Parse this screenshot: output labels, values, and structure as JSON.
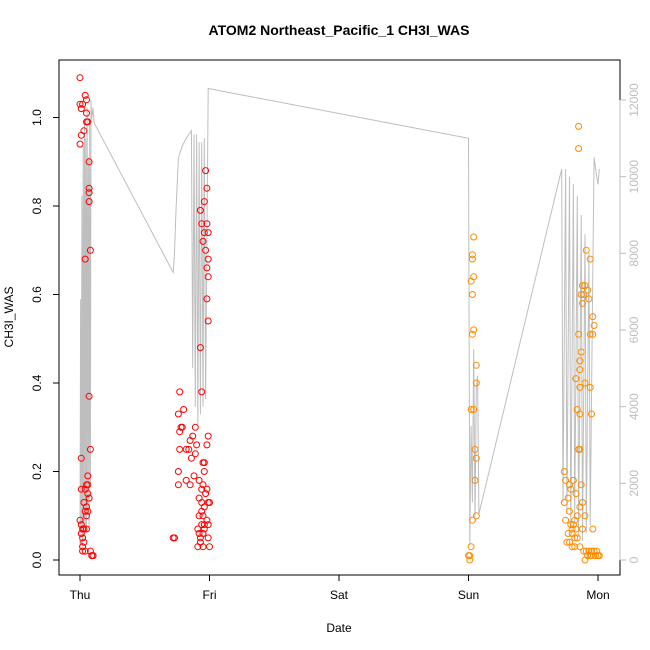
{
  "chart_data": {
    "type": "scatter",
    "title": "ATOM2 Northeast_Pacific_1 CH3I_WAS",
    "xlabel": "Date",
    "ylabel": "CH3I_WAS",
    "x_ticks": [
      "Thu",
      "Fri",
      "Sat",
      "Sun",
      "Mon"
    ],
    "xlim": [
      -0.2,
      4.1
    ],
    "ylim": [
      0,
      1.1
    ],
    "y_ticks": [
      "0.0",
      "0.2",
      "0.4",
      "0.6",
      "0.8",
      "1.0"
    ],
    "y2lim": [
      0,
      12000
    ],
    "y2_ticks": [
      "0",
      "2000",
      "4000",
      "6000",
      "8000",
      "10000",
      "12000"
    ],
    "colors": {
      "series1": "#ff0000",
      "series2": "#ff8c00",
      "altitude": "#bebebe"
    },
    "series": [
      {
        "color": "#ff0000",
        "points": [
          [
            0.0,
            1.09
          ],
          [
            0.0,
            1.03
          ],
          [
            0.01,
            1.02
          ],
          [
            0.02,
            1.03
          ],
          [
            0.01,
            0.96
          ],
          [
            0.0,
            0.94
          ],
          [
            0.03,
            0.97
          ],
          [
            0.04,
            1.05
          ],
          [
            0.05,
            1.04
          ],
          [
            0.05,
            1.01
          ],
          [
            0.05,
            0.99
          ],
          [
            0.06,
            0.99
          ],
          [
            0.07,
            0.9
          ],
          [
            0.07,
            0.84
          ],
          [
            0.07,
            0.83
          ],
          [
            0.07,
            0.81
          ],
          [
            0.08,
            0.7
          ],
          [
            0.04,
            0.68
          ],
          [
            0.07,
            0.37
          ],
          [
            0.08,
            0.25
          ],
          [
            0.01,
            0.23
          ],
          [
            0.06,
            0.19
          ],
          [
            0.05,
            0.17
          ],
          [
            0.06,
            0.17
          ],
          [
            0.01,
            0.16
          ],
          [
            0.04,
            0.16
          ],
          [
            0.06,
            0.15
          ],
          [
            0.07,
            0.14
          ],
          [
            0.03,
            0.13
          ],
          [
            0.05,
            0.12
          ],
          [
            0.06,
            0.11
          ],
          [
            0.04,
            0.11
          ],
          [
            0.05,
            0.1
          ],
          [
            0.0,
            0.09
          ],
          [
            0.01,
            0.08
          ],
          [
            0.02,
            0.07
          ],
          [
            0.03,
            0.07
          ],
          [
            0.05,
            0.07
          ],
          [
            0.01,
            0.06
          ],
          [
            0.02,
            0.05
          ],
          [
            0.03,
            0.04
          ],
          [
            0.02,
            0.03
          ],
          [
            0.04,
            0.02
          ],
          [
            0.02,
            0.02
          ],
          [
            0.08,
            0.02
          ],
          [
            0.09,
            0.01
          ],
          [
            0.1,
            0.01
          ],
          [
            0.1,
            0.01
          ],
          [
            0.97,
            0.88
          ],
          [
            0.98,
            0.84
          ],
          [
            0.96,
            0.81
          ],
          [
            0.93,
            0.79
          ],
          [
            0.94,
            0.76
          ],
          [
            0.98,
            0.76
          ],
          [
            0.96,
            0.74
          ],
          [
            0.99,
            0.74
          ],
          [
            0.95,
            0.72
          ],
          [
            0.97,
            0.7
          ],
          [
            0.99,
            0.68
          ],
          [
            0.98,
            0.66
          ],
          [
            0.99,
            0.64
          ],
          [
            0.98,
            0.59
          ],
          [
            0.99,
            0.54
          ],
          [
            0.93,
            0.48
          ],
          [
            0.94,
            0.38
          ],
          [
            0.77,
            0.38
          ],
          [
            0.76,
            0.33
          ],
          [
            0.8,
            0.34
          ],
          [
            0.78,
            0.3
          ],
          [
            0.77,
            0.29
          ],
          [
            0.79,
            0.3
          ],
          [
            0.89,
            0.3
          ],
          [
            0.99,
            0.28
          ],
          [
            0.85,
            0.27
          ],
          [
            0.87,
            0.28
          ],
          [
            0.98,
            0.26
          ],
          [
            0.77,
            0.25
          ],
          [
            0.84,
            0.25
          ],
          [
            0.82,
            0.25
          ],
          [
            0.9,
            0.26
          ],
          [
            0.89,
            0.24
          ],
          [
            0.86,
            0.23
          ],
          [
            0.95,
            0.22
          ],
          [
            0.96,
            0.22
          ],
          [
            0.76,
            0.2
          ],
          [
            0.96,
            0.2
          ],
          [
            0.88,
            0.19
          ],
          [
            0.82,
            0.18
          ],
          [
            0.92,
            0.18
          ],
          [
            0.95,
            0.17
          ],
          [
            0.76,
            0.17
          ],
          [
            0.85,
            0.17
          ],
          [
            0.98,
            0.16
          ],
          [
            0.94,
            0.16
          ],
          [
            0.97,
            0.15
          ],
          [
            0.92,
            0.14
          ],
          [
            0.94,
            0.13
          ],
          [
            1.0,
            0.13
          ],
          [
            0.99,
            0.13
          ],
          [
            0.96,
            0.12
          ],
          [
            0.94,
            0.11
          ],
          [
            0.95,
            0.1
          ],
          [
            0.92,
            0.1
          ],
          [
            0.98,
            0.09
          ],
          [
            0.96,
            0.08
          ],
          [
            0.94,
            0.08
          ],
          [
            0.99,
            0.08
          ],
          [
            0.91,
            0.07
          ],
          [
            0.96,
            0.07
          ],
          [
            0.92,
            0.06
          ],
          [
            0.95,
            0.06
          ],
          [
            0.99,
            0.05
          ],
          [
            0.93,
            0.05
          ],
          [
            0.72,
            0.05
          ],
          [
            0.73,
            0.05
          ],
          [
            0.93,
            0.04
          ],
          [
            0.91,
            0.03
          ],
          [
            0.95,
            0.03
          ],
          [
            1.0,
            0.03
          ]
        ]
      },
      {
        "color": "#ff8c00",
        "points": [
          [
            3.04,
            0.73
          ],
          [
            3.03,
            0.69
          ],
          [
            3.03,
            0.68
          ],
          [
            3.04,
            0.64
          ],
          [
            3.02,
            0.63
          ],
          [
            3.03,
            0.6
          ],
          [
            3.04,
            0.52
          ],
          [
            3.03,
            0.51
          ],
          [
            3.06,
            0.44
          ],
          [
            3.06,
            0.4
          ],
          [
            3.04,
            0.34
          ],
          [
            3.02,
            0.34
          ],
          [
            3.05,
            0.25
          ],
          [
            3.06,
            0.23
          ],
          [
            3.05,
            0.18
          ],
          [
            3.06,
            0.1
          ],
          [
            3.03,
            0.09
          ],
          [
            3.02,
            0.03
          ],
          [
            3.01,
            0.01
          ],
          [
            3.0,
            0.01
          ],
          [
            3.01,
            0.0
          ],
          [
            3.85,
            0.98
          ],
          [
            3.85,
            0.93
          ],
          [
            3.94,
            0.68
          ],
          [
            3.91,
            0.7
          ],
          [
            3.88,
            0.62
          ],
          [
            3.9,
            0.62
          ],
          [
            3.89,
            0.6
          ],
          [
            3.93,
            0.59
          ],
          [
            3.87,
            0.6
          ],
          [
            3.92,
            0.61
          ],
          [
            3.96,
            0.55
          ],
          [
            3.97,
            0.53
          ],
          [
            3.96,
            0.51
          ],
          [
            3.94,
            0.51
          ],
          [
            3.88,
            0.58
          ],
          [
            3.85,
            0.51
          ],
          [
            3.87,
            0.47
          ],
          [
            3.86,
            0.45
          ],
          [
            3.86,
            0.43
          ],
          [
            3.83,
            0.41
          ],
          [
            3.9,
            0.4
          ],
          [
            3.86,
            0.39
          ],
          [
            3.94,
            0.39
          ],
          [
            3.84,
            0.34
          ],
          [
            3.86,
            0.33
          ],
          [
            3.95,
            0.33
          ],
          [
            3.85,
            0.25
          ],
          [
            3.86,
            0.25
          ],
          [
            3.74,
            0.2
          ],
          [
            3.81,
            0.18
          ],
          [
            3.75,
            0.18
          ],
          [
            3.78,
            0.17
          ],
          [
            3.87,
            0.17
          ],
          [
            3.79,
            0.16
          ],
          [
            3.83,
            0.15
          ],
          [
            3.77,
            0.14
          ],
          [
            3.74,
            0.13
          ],
          [
            3.88,
            0.13
          ],
          [
            3.86,
            0.12
          ],
          [
            3.78,
            0.11
          ],
          [
            3.84,
            0.1
          ],
          [
            3.9,
            0.1
          ],
          [
            3.82,
            0.09
          ],
          [
            3.75,
            0.09
          ],
          [
            3.81,
            0.08
          ],
          [
            3.79,
            0.08
          ],
          [
            3.8,
            0.07
          ],
          [
            3.83,
            0.07
          ],
          [
            3.88,
            0.07
          ],
          [
            3.96,
            0.07
          ],
          [
            3.77,
            0.06
          ],
          [
            3.8,
            0.06
          ],
          [
            3.82,
            0.05
          ],
          [
            3.84,
            0.05
          ],
          [
            3.76,
            0.04
          ],
          [
            3.78,
            0.04
          ],
          [
            3.8,
            0.03
          ],
          [
            3.82,
            0.03
          ],
          [
            3.86,
            0.03
          ],
          [
            3.89,
            0.02
          ],
          [
            3.91,
            0.02
          ],
          [
            3.93,
            0.02
          ],
          [
            3.95,
            0.02
          ],
          [
            3.97,
            0.02
          ],
          [
            3.99,
            0.02
          ],
          [
            4.01,
            0.01
          ],
          [
            3.92,
            0.01
          ],
          [
            3.95,
            0.01
          ],
          [
            3.98,
            0.01
          ],
          [
            4.0,
            0.01
          ],
          [
            3.9,
            0.0
          ],
          [
            3.94,
            0.01
          ]
        ]
      }
    ],
    "altitude_line": [
      [
        0.0,
        300
      ],
      [
        0.005,
        6800
      ],
      [
        0.01,
        700
      ],
      [
        0.015,
        9500
      ],
      [
        0.02,
        400
      ],
      [
        0.025,
        10800
      ],
      [
        0.03,
        600
      ],
      [
        0.035,
        11500
      ],
      [
        0.04,
        800
      ],
      [
        0.045,
        11000
      ],
      [
        0.05,
        900
      ],
      [
        0.055,
        11800
      ],
      [
        0.06,
        1200
      ],
      [
        0.065,
        10500
      ],
      [
        0.07,
        800
      ],
      [
        0.075,
        11500
      ],
      [
        0.08,
        2000
      ],
      [
        0.085,
        12000
      ],
      [
        0.09,
        11500
      ],
      [
        0.1,
        11800
      ],
      [
        0.11,
        11400
      ],
      [
        0.105,
        11500
      ],
      [
        0.11,
        11400
      ],
      [
        0.72,
        7500
      ],
      [
        0.73,
        8000
      ],
      [
        0.74,
        9000
      ],
      [
        0.76,
        10500
      ],
      [
        0.79,
        10800
      ],
      [
        0.82,
        11000
      ],
      [
        0.86,
        11200
      ],
      [
        0.87,
        5000
      ],
      [
        0.88,
        11100
      ],
      [
        0.89,
        4000
      ],
      [
        0.9,
        11100
      ],
      [
        0.91,
        3500
      ],
      [
        0.92,
        10900
      ],
      [
        0.93,
        3800
      ],
      [
        0.94,
        10900
      ],
      [
        0.95,
        4000
      ],
      [
        0.96,
        11000
      ],
      [
        0.97,
        4200
      ],
      [
        0.99,
        12300
      ],
      [
        3.0,
        11000
      ],
      [
        3.01,
        400
      ],
      [
        3.02,
        3500
      ],
      [
        3.03,
        1500
      ],
      [
        3.04,
        5500
      ],
      [
        3.05,
        1000
      ],
      [
        3.06,
        4500
      ],
      [
        3.07,
        4800
      ],
      [
        3.08,
        1200
      ],
      [
        3.72,
        10200
      ],
      [
        3.73,
        1500
      ],
      [
        3.75,
        10200
      ],
      [
        3.76,
        1200
      ],
      [
        3.78,
        10000
      ],
      [
        3.79,
        800
      ],
      [
        3.81,
        9800
      ],
      [
        3.82,
        1000
      ],
      [
        3.84,
        9500
      ],
      [
        3.85,
        600
      ],
      [
        3.87,
        9000
      ],
      [
        3.88,
        500
      ],
      [
        3.9,
        8500
      ],
      [
        3.91,
        700
      ],
      [
        3.93,
        8000
      ],
      [
        3.94,
        900
      ],
      [
        3.96,
        7500
      ],
      [
        3.97,
        10500
      ],
      [
        3.99,
        10000
      ],
      [
        4.0,
        9800
      ],
      [
        4.01,
        10200
      ]
    ]
  }
}
